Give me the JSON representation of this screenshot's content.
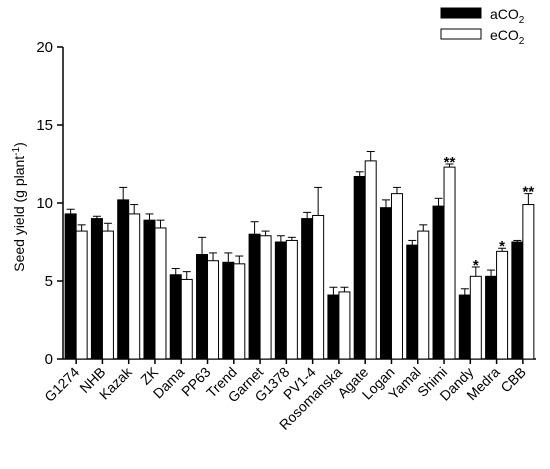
{
  "chart_data": {
    "type": "bar",
    "ylabel": "Seed yield (g plant",
    "ylabel_sup": "-1",
    "ylabel_end": ")",
    "ylim": [
      0,
      20
    ],
    "yticks": [
      "0",
      "5",
      "10",
      "15",
      "20"
    ],
    "grid": false,
    "legend_position": "top-right",
    "categories": [
      "G1274",
      "NHB",
      "Kazak",
      "ZK",
      "Dama",
      "PP63",
      "Trend",
      "Garnet",
      "G1378",
      "PV1-4",
      "Rosomanska",
      "Agate",
      "Logan",
      "Yamal",
      "Shimi",
      "Dandy",
      "Medra",
      "CBB"
    ],
    "series": [
      {
        "name": "aCO",
        "name_sub": "2",
        "color": "#000000",
        "values": [
          9.3,
          9.0,
          10.2,
          8.9,
          5.4,
          6.7,
          6.2,
          8.0,
          7.5,
          9.0,
          4.1,
          11.7,
          9.7,
          7.3,
          9.8,
          4.1,
          5.3,
          7.5
        ],
        "errors": [
          0.3,
          0.15,
          0.8,
          0.4,
          0.4,
          1.1,
          0.6,
          0.8,
          0.4,
          0.4,
          0.5,
          0.3,
          0.5,
          0.3,
          0.5,
          0.4,
          0.4,
          0.1
        ]
      },
      {
        "name": "eCO",
        "name_sub": "2",
        "color": "#ffffff",
        "values": [
          8.2,
          8.2,
          9.3,
          8.4,
          5.1,
          6.3,
          6.1,
          7.9,
          7.6,
          9.2,
          4.3,
          12.7,
          10.6,
          8.2,
          12.3,
          5.3,
          6.9,
          9.9
        ],
        "errors": [
          0.4,
          0.5,
          0.6,
          0.5,
          0.5,
          0.5,
          0.5,
          0.3,
          0.2,
          1.8,
          0.3,
          0.6,
          0.4,
          0.4,
          0.2,
          0.6,
          0.2,
          0.7
        ]
      }
    ],
    "significance": [
      "",
      "",
      "",
      "",
      "",
      "",
      "",
      "",
      "",
      "",
      "",
      "",
      "",
      "",
      "**",
      "*",
      "*",
      "**"
    ]
  }
}
